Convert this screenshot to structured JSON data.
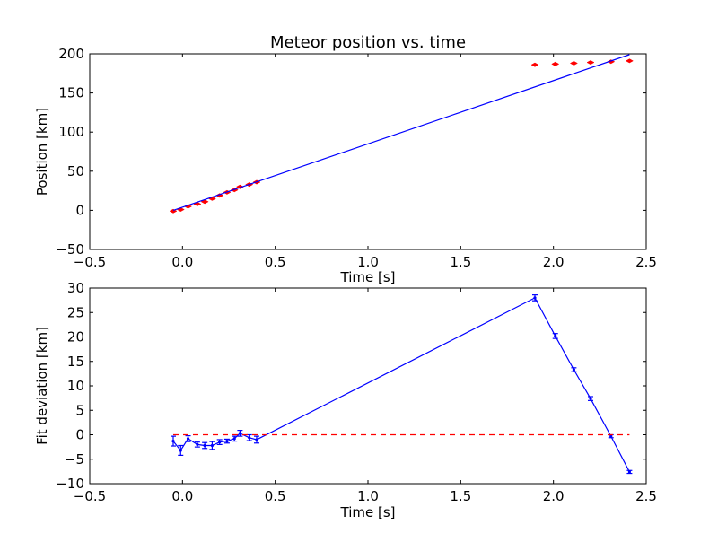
{
  "chart_data": [
    {
      "type": "scatter",
      "title": "Meteor position vs. time",
      "xlabel": "Time [s]",
      "ylabel": "Position [km]",
      "xlim": [
        -0.5,
        2.5
      ],
      "ylim": [
        -50,
        200
      ],
      "xticks": [
        -0.5,
        0.0,
        0.5,
        1.0,
        1.5,
        2.0,
        2.5
      ],
      "xtick_labels": [
        "−0.5",
        "0.0",
        "0.5",
        "1.0",
        "1.5",
        "2.0",
        "2.5"
      ],
      "yticks": [
        -50,
        0,
        50,
        100,
        150,
        200
      ],
      "ytick_labels": [
        "−50",
        "0",
        "50",
        "100",
        "150",
        "200"
      ],
      "grid": false,
      "series": [
        {
          "kind": "points",
          "color": "#ff0000",
          "x": [
            -0.05,
            -0.01,
            0.03,
            0.08,
            0.12,
            0.16,
            0.2,
            0.24,
            0.28,
            0.31,
            0.36,
            0.4,
            1.9,
            2.01,
            2.11,
            2.2,
            2.31,
            2.41
          ],
          "y": [
            -1,
            1,
            5,
            8,
            11,
            15,
            19,
            23,
            26,
            30,
            33,
            36,
            186,
            187,
            188,
            189,
            190,
            191
          ]
        },
        {
          "kind": "line",
          "color": "#0000ff",
          "x": [
            -0.05,
            2.41
          ],
          "y": [
            0,
            199
          ]
        }
      ]
    },
    {
      "type": "line",
      "title": "",
      "xlabel": "Time [s]",
      "ylabel": "Fit deviation [km]",
      "xlim": [
        -0.5,
        2.5
      ],
      "ylim": [
        -10,
        30
      ],
      "xticks": [
        -0.5,
        0.0,
        0.5,
        1.0,
        1.5,
        2.0,
        2.5
      ],
      "xtick_labels": [
        "−0.5",
        "0.0",
        "0.5",
        "1.0",
        "1.5",
        "2.0",
        "2.5"
      ],
      "yticks": [
        -10,
        -5,
        0,
        5,
        10,
        15,
        20,
        25,
        30
      ],
      "ytick_labels": [
        "−10",
        "−5",
        "0",
        "5",
        "10",
        "15",
        "20",
        "25",
        "30"
      ],
      "grid": false,
      "series": [
        {
          "kind": "errorbar-line",
          "color": "#0000ff",
          "x": [
            -0.05,
            -0.01,
            0.03,
            0.08,
            0.12,
            0.16,
            0.2,
            0.24,
            0.28,
            0.31,
            0.36,
            0.4,
            1.9,
            2.01,
            2.11,
            2.2,
            2.31,
            2.41
          ],
          "y": [
            -1.3,
            -3.2,
            -0.8,
            -2.0,
            -2.2,
            -2.2,
            -1.5,
            -1.3,
            -0.8,
            0.3,
            -0.6,
            -1.0,
            28.0,
            20.2,
            13.3,
            7.4,
            -0.3,
            -7.6
          ],
          "err": [
            1.0,
            1.0,
            0.6,
            0.5,
            0.6,
            0.8,
            0.5,
            0.4,
            0.5,
            0.6,
            0.6,
            0.7,
            0.6,
            0.5,
            0.4,
            0.4,
            0.3,
            0.3
          ]
        },
        {
          "kind": "dashed-line",
          "color": "#ff0000",
          "x": [
            -0.05,
            2.41
          ],
          "y": [
            0,
            0
          ]
        }
      ]
    }
  ]
}
